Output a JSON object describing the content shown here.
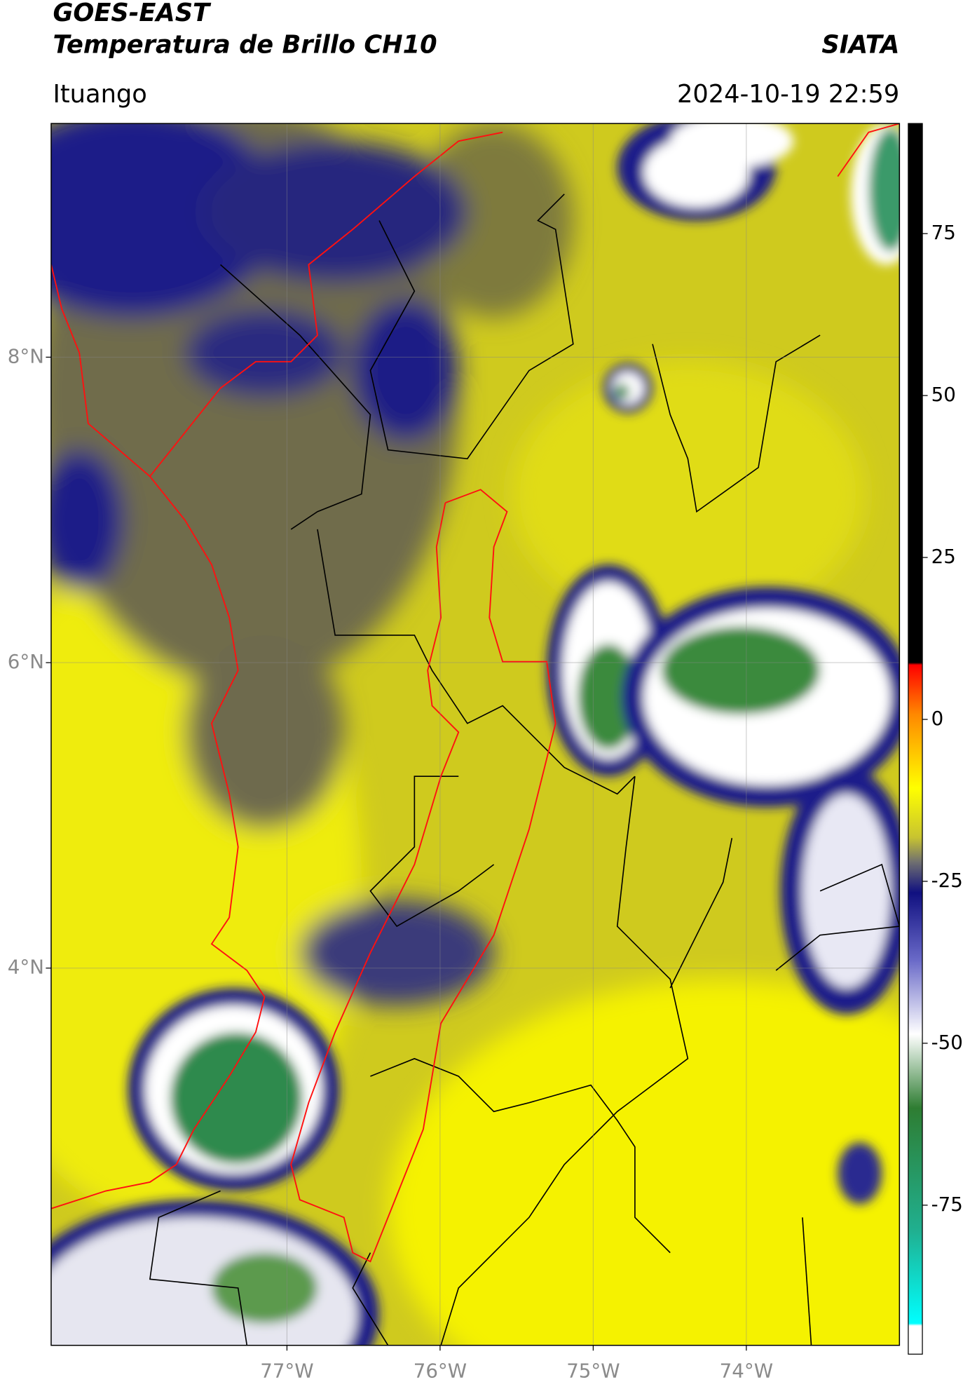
{
  "header": {
    "title": "GOES-EAST",
    "subtitle": "Temperatura de Brillo CH10",
    "brand": "SIATA",
    "region": "Ituango",
    "timestamp": "2024-10-19 22:59"
  },
  "chart_data": {
    "type": "map",
    "xlim": [
      -78.54,
      -73.0
    ],
    "ylim": [
      1.53,
      9.53
    ],
    "xticks": [
      {
        "value": -77,
        "label": "77°W"
      },
      {
        "value": -76,
        "label": "76°W"
      },
      {
        "value": -75,
        "label": "75°W"
      },
      {
        "value": -74,
        "label": "74°W"
      }
    ],
    "yticks": [
      {
        "value": 8,
        "label": "8°N"
      },
      {
        "value": 6,
        "label": "6°N"
      },
      {
        "value": 4,
        "label": "4°N"
      }
    ],
    "grid": true,
    "colorbar": {
      "lim": [
        -98,
        92
      ],
      "ticks": [
        75,
        50,
        25,
        0,
        -25,
        -50,
        -75
      ]
    }
  }
}
